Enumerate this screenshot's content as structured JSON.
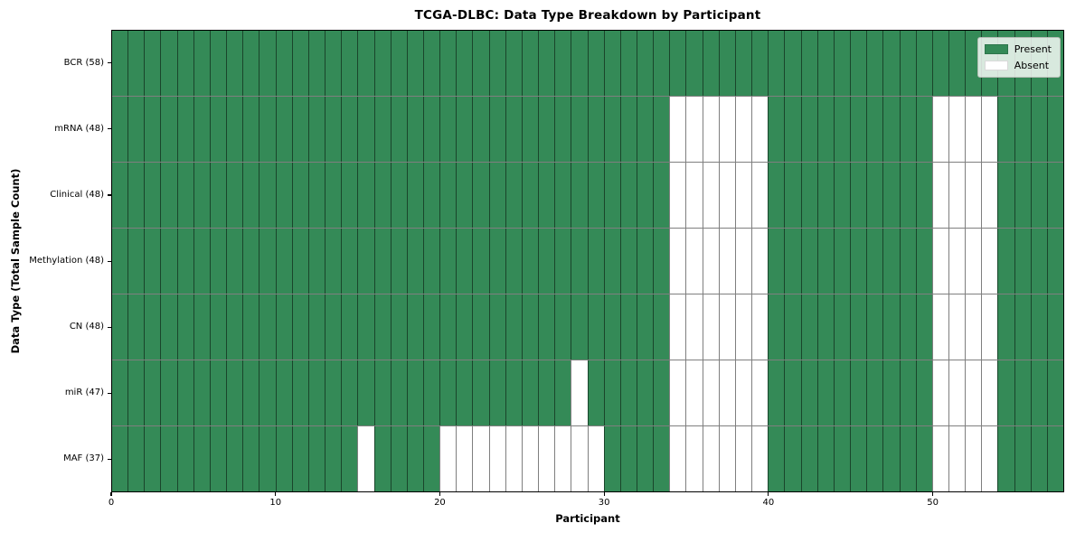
{
  "chart_data": {
    "type": "heatmap",
    "title": "TCGA-DLBC: Data Type Breakdown by Participant",
    "xlabel": "Participant",
    "ylabel": "Data Type (Total Sample Count)",
    "n_participants": 58,
    "x_range": [
      0,
      58
    ],
    "x_ticks": [
      "0",
      "10",
      "20",
      "30",
      "40",
      "50"
    ],
    "x_tick_values": [
      0,
      10,
      20,
      30,
      40,
      50
    ],
    "grid": true,
    "legend_position": "upper right",
    "legend": [
      {
        "label": "Present",
        "value": "present"
      },
      {
        "label": "Absent",
        "value": "absent"
      }
    ],
    "colors": {
      "present": "#348a57",
      "absent": "#ffffff",
      "cell_edge": "rgba(0,0,0,0.50)",
      "spine": "#000000",
      "legend_background": "rgba(252,254,252,0.82)"
    },
    "rows": [
      {
        "label": "BCR (58)",
        "present_count": 58,
        "absent_participants": []
      },
      {
        "label": "mRNA (48)",
        "present_count": 48,
        "absent_participants": [
          34,
          35,
          36,
          37,
          38,
          39,
          50,
          51,
          52,
          53
        ]
      },
      {
        "label": "Clinical (48)",
        "present_count": 48,
        "absent_participants": [
          34,
          35,
          36,
          37,
          38,
          39,
          50,
          51,
          52,
          53
        ]
      },
      {
        "label": "Methylation (48)",
        "present_count": 48,
        "absent_participants": [
          34,
          35,
          36,
          37,
          38,
          39,
          50,
          51,
          52,
          53
        ]
      },
      {
        "label": "CN (48)",
        "present_count": 48,
        "absent_participants": [
          34,
          35,
          36,
          37,
          38,
          39,
          50,
          51,
          52,
          53
        ]
      },
      {
        "label": "miR (47)",
        "present_count": 47,
        "absent_participants": [
          28,
          34,
          35,
          36,
          37,
          38,
          39,
          50,
          51,
          52,
          53
        ]
      },
      {
        "label": "MAF (37)",
        "present_count": 37,
        "absent_participants": [
          15,
          20,
          21,
          22,
          23,
          24,
          25,
          26,
          27,
          28,
          29,
          34,
          35,
          36,
          37,
          38,
          39,
          50,
          51,
          52,
          53
        ]
      }
    ]
  }
}
